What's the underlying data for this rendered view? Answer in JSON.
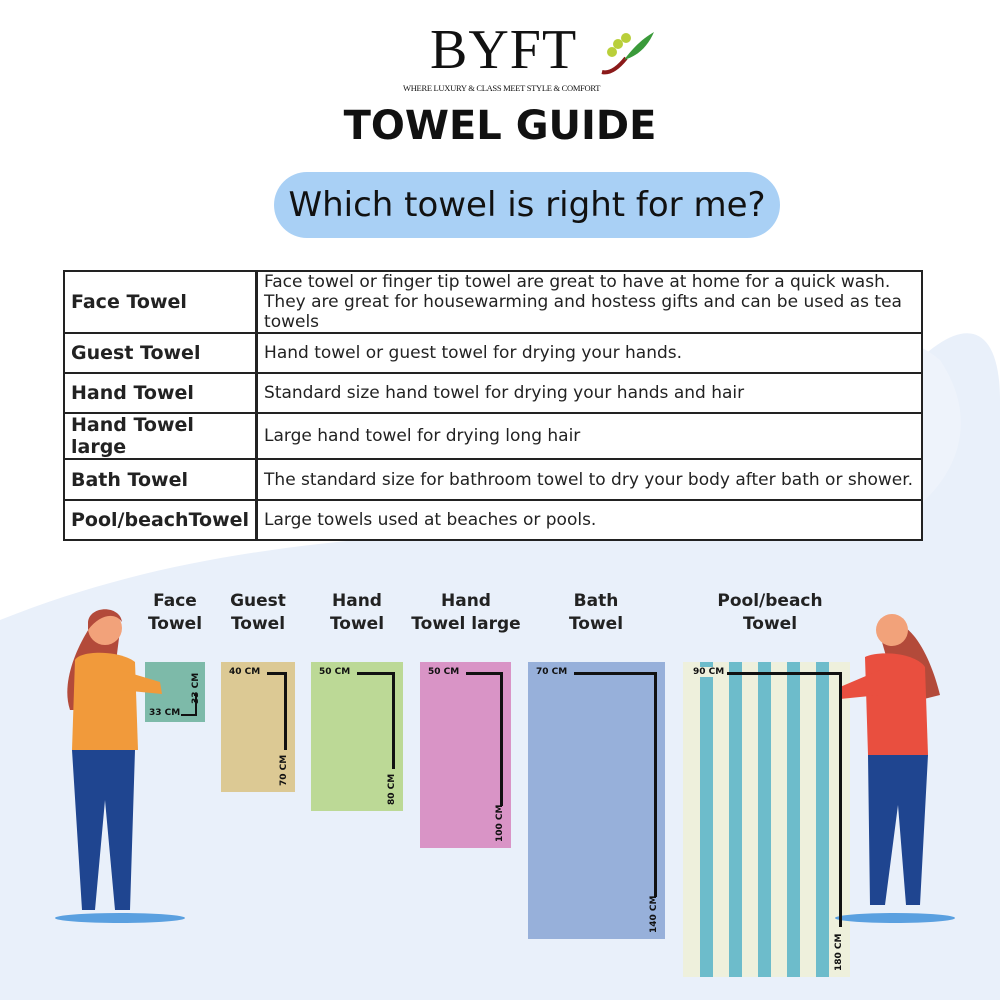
{
  "brand": {
    "name": "BYFT",
    "tagline": "WHERE LUXURY & CLASS MEET STYLE & COMFORT"
  },
  "title": "TOWEL GUIDE",
  "subtitle": "Which towel is right for me?",
  "table": [
    {
      "type": "Face Towel",
      "desc": [
        "Face towel or finger tip towel are great to have at home for a quick wash.",
        "They are great for housewarming and hostess gifts and can be used as tea towels"
      ]
    },
    {
      "type": "Guest Towel",
      "desc": [
        "Hand towel or guest towel for drying your hands."
      ]
    },
    {
      "type": "Hand Towel",
      "desc": [
        "Standard size hand towel for drying your hands and hair"
      ]
    },
    {
      "type": "Hand Towel large",
      "desc": [
        "Large hand towel for drying long hair"
      ]
    },
    {
      "type": "Bath Towel",
      "desc": [
        "The standard size for bathroom towel to dry your body after bath or shower."
      ]
    },
    {
      "type": "Pool/beachTowel",
      "desc": [
        "Large towels used at beaches or pools."
      ]
    }
  ],
  "towels": [
    {
      "label": [
        "Face",
        "Towel"
      ],
      "width": "33 CM",
      "length": "33 CM",
      "color": "#7dbaa9"
    },
    {
      "label": [
        "Guest",
        "Towel"
      ],
      "width": "40 CM",
      "length": "70 CM",
      "color": "#dcc994"
    },
    {
      "label": [
        "Hand",
        "Towel"
      ],
      "width": "50 CM",
      "length": "80 CM",
      "color": "#bcd996"
    },
    {
      "label": [
        "Hand",
        "Towel large"
      ],
      "width": "50 CM",
      "length": "100 CM",
      "color": "#d994c6"
    },
    {
      "label": [
        "Bath",
        "Towel"
      ],
      "width": "70 CM",
      "length": "140 CM",
      "color": "#97b0da"
    },
    {
      "label": [
        "Pool/beach",
        "Towel"
      ],
      "width": "90 CM",
      "length": "180 CM",
      "color": "#eef0dc",
      "stripe_color": "#6dbccb"
    }
  ]
}
